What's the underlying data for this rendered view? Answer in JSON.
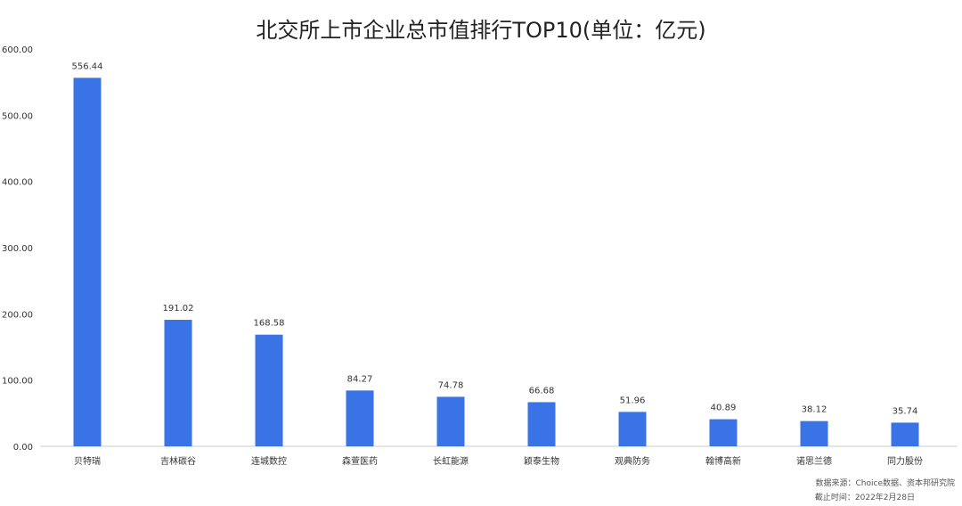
{
  "chart_data": {
    "type": "bar",
    "title": "北交所上市企业总市值排行TOP10(单位：亿元)",
    "xlabel": "",
    "ylabel": "",
    "ylim": [
      0,
      600
    ],
    "yticks": [
      0,
      100,
      200,
      300,
      400,
      500,
      600
    ],
    "ytick_labels": [
      "0.00",
      "100.00",
      "200.00",
      "300.00",
      "400.00",
      "500.00",
      "600.00"
    ],
    "grid": false,
    "legend": "none",
    "bar_color": "#3a73e6",
    "categories": [
      "贝特瑞",
      "吉林碳谷",
      "连城数控",
      "森萱医药",
      "长虹能源",
      "颖泰生物",
      "观典防务",
      "翰博高新",
      "诺思兰德",
      "同力股份"
    ],
    "values": [
      556.44,
      191.02,
      168.58,
      84.27,
      74.78,
      66.68,
      51.96,
      40.89,
      38.12,
      35.74
    ],
    "value_labels": [
      "556.44",
      "191.02",
      "168.58",
      "84.27",
      "74.78",
      "66.68",
      "51.96",
      "40.89",
      "38.12",
      "35.74"
    ]
  },
  "footnote": {
    "source": "数据来源：Choice数据、资本邦研究院",
    "date": "截止时间：2022年2月28日"
  }
}
